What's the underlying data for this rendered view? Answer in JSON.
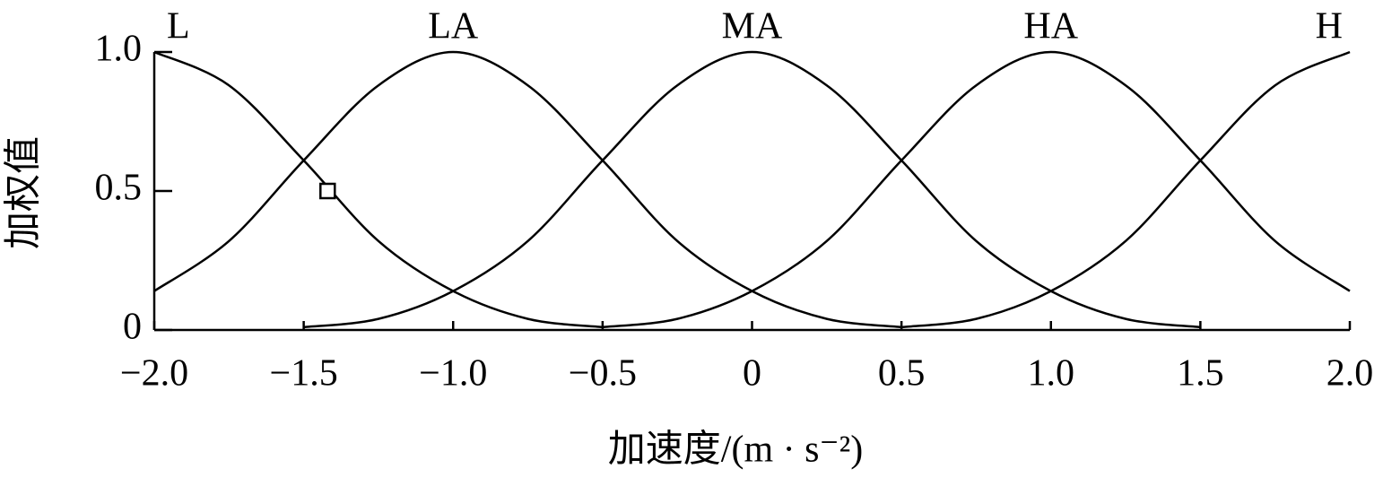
{
  "chart_data": {
    "type": "line",
    "x_label": "加速度/(m · s⁻²)",
    "y_label": "加权值",
    "x": [
      -2,
      -1.75,
      -1.5,
      -1.25,
      -1,
      -0.75,
      -0.5,
      -0.25,
      0,
      0.25,
      0.5,
      0.75,
      1,
      1.25,
      1.5,
      1.75,
      2
    ],
    "series": [
      {
        "name": "L",
        "color": "#000000",
        "values": [
          1,
          0.88,
          0.61,
          0.32,
          0.14,
          0.04,
          0.01,
          null,
          null,
          null,
          null,
          null,
          null,
          null,
          null,
          null,
          null
        ]
      },
      {
        "name": "LA",
        "color": "#000000",
        "values": [
          0.14,
          0.32,
          0.61,
          0.88,
          1,
          0.88,
          0.61,
          0.32,
          0.14,
          0.04,
          0.01,
          null,
          null,
          null,
          null,
          null,
          null
        ]
      },
      {
        "name": "MA",
        "color": "#000000",
        "values": [
          null,
          null,
          0.01,
          0.04,
          0.14,
          0.32,
          0.61,
          0.88,
          1,
          0.88,
          0.61,
          0.32,
          0.14,
          0.04,
          0.01,
          null,
          null
        ]
      },
      {
        "name": "HA",
        "color": "#000000",
        "values": [
          null,
          null,
          null,
          null,
          null,
          null,
          0.01,
          0.04,
          0.14,
          0.32,
          0.61,
          0.88,
          1,
          0.88,
          0.61,
          0.32,
          0.14
        ]
      },
      {
        "name": "H",
        "color": "#000000",
        "values": [
          null,
          null,
          null,
          null,
          null,
          null,
          null,
          null,
          null,
          null,
          0.01,
          0.04,
          0.14,
          0.32,
          0.61,
          0.88,
          1
        ]
      }
    ],
    "marker": {
      "x": -1.42,
      "y": 0.5
    },
    "xlim": [
      -2,
      2
    ],
    "ylim": [
      0,
      1
    ],
    "xticks": [
      {
        "value": -2,
        "label": "−2.0"
      },
      {
        "value": -1.5,
        "label": "−1.5"
      },
      {
        "value": -1,
        "label": "−1.0"
      },
      {
        "value": -0.5,
        "label": "−0.5"
      },
      0,
      0.5,
      {
        "value": 1,
        "label": "1.0"
      },
      1.5,
      {
        "value": 2,
        "label": "2.0"
      }
    ],
    "yticks": [
      0,
      0.5,
      {
        "value": 1,
        "label": "1.0"
      }
    ],
    "grid": false
  }
}
